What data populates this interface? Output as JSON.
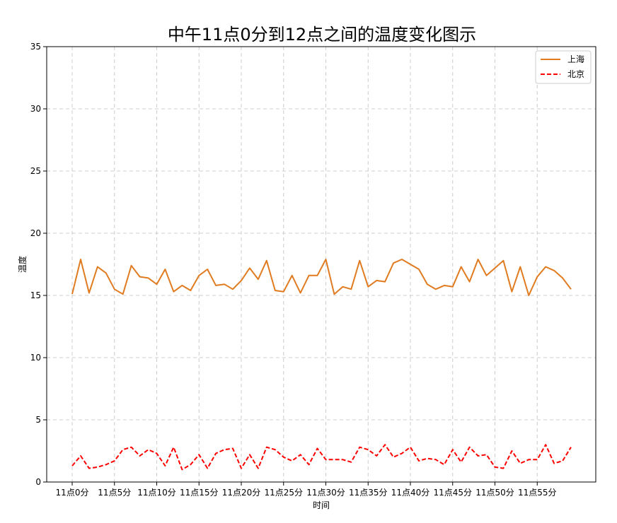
{
  "chart_data": {
    "type": "line",
    "title": "中午11点0分到12点之间的温度变化图示",
    "xlabel": "时间",
    "ylabel": "温度",
    "ylim": [
      0,
      35
    ],
    "yticks": [
      0,
      5,
      10,
      15,
      20,
      25,
      30,
      35
    ],
    "grid": true,
    "legend_position": "top-right",
    "x_tick_labels": [
      "11点0分",
      "11点5分",
      "11点10分",
      "11点15分",
      "11点20分",
      "11点25分",
      "11点30分",
      "11点35分",
      "11点40分",
      "11点45分",
      "11点50分",
      "11点55分"
    ],
    "x_tick_every": 5,
    "x": [
      0,
      1,
      2,
      3,
      4,
      5,
      6,
      7,
      8,
      9,
      10,
      11,
      12,
      13,
      14,
      15,
      16,
      17,
      18,
      19,
      20,
      21,
      22,
      23,
      24,
      25,
      26,
      27,
      28,
      29,
      30,
      31,
      32,
      33,
      34,
      35,
      36,
      37,
      38,
      39,
      40,
      41,
      42,
      43,
      44,
      45,
      46,
      47,
      48,
      49,
      50,
      51,
      52,
      53,
      54,
      55,
      56,
      57,
      58,
      59
    ],
    "series": [
      {
        "name": "上海",
        "color": "#e07b20",
        "style": "solid",
        "values": [
          15.1,
          17.9,
          15.2,
          17.3,
          16.8,
          15.5,
          15.1,
          17.4,
          16.5,
          16.4,
          15.9,
          17.1,
          15.3,
          15.8,
          15.4,
          16.6,
          17.1,
          15.8,
          15.9,
          15.5,
          16.2,
          17.2,
          16.3,
          17.8,
          15.4,
          15.3,
          16.6,
          15.2,
          16.6,
          16.6,
          17.9,
          15.1,
          15.7,
          15.5,
          17.8,
          15.7,
          16.2,
          16.1,
          17.6,
          17.9,
          17.5,
          17.1,
          15.9,
          15.5,
          15.8,
          15.7,
          17.3,
          16.1,
          17.9,
          16.6,
          17.2,
          17.8,
          15.3,
          17.3,
          15.0,
          16.5,
          17.3,
          17.0,
          16.4,
          15.5
        ]
      },
      {
        "name": "北京",
        "color": "#ff0000",
        "style": "dashed",
        "values": [
          1.3,
          2.1,
          1.1,
          1.2,
          1.4,
          1.7,
          2.6,
          2.8,
          2.1,
          2.6,
          2.3,
          1.3,
          2.8,
          1.0,
          1.4,
          2.2,
          1.1,
          2.3,
          2.6,
          2.7,
          1.1,
          2.2,
          1.1,
          2.8,
          2.6,
          2.0,
          1.7,
          2.2,
          1.4,
          2.7,
          1.8,
          1.8,
          1.8,
          1.6,
          2.8,
          2.6,
          2.1,
          3.0,
          2.0,
          2.3,
          2.8,
          1.7,
          1.9,
          1.8,
          1.4,
          2.6,
          1.6,
          2.8,
          2.1,
          2.2,
          1.2,
          1.1,
          2.5,
          1.5,
          1.8,
          1.8,
          3.0,
          1.5,
          1.7,
          2.8
        ]
      }
    ]
  }
}
